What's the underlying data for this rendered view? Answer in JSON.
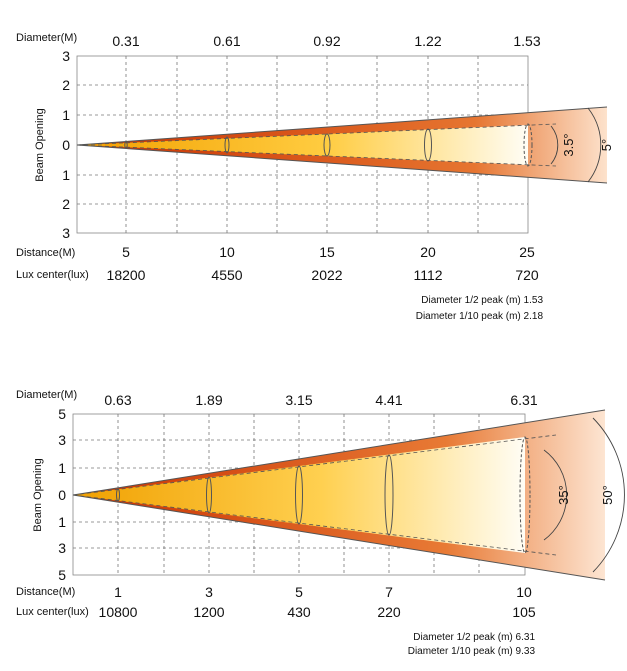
{
  "diagrams": [
    {
      "diameter_label": "Diameter(M)",
      "diameters": [
        "0.31",
        "0.61",
        "0.92",
        "1.22",
        "1.53"
      ],
      "y_axis_label": "Beam Opening",
      "y_ticks": [
        "3",
        "2",
        "1",
        "0",
        "1",
        "2",
        "3"
      ],
      "distance_label": "Distance(M)",
      "distances": [
        "5",
        "10",
        "15",
        "20",
        "25"
      ],
      "lux_label": "Lux center(lux)",
      "lux_values": [
        "18200",
        "4550",
        "2022",
        "1112",
        "720"
      ],
      "half_angle_label": "3.5°",
      "tenth_angle_label": "5°",
      "note_half_peak": "Diameter 1/2 peak (m) 1.53",
      "note_tenth_peak": "Diameter 1/10 peak (m) 2.18",
      "chart_data": {
        "type": "beam-diagram",
        "x": [
          5,
          10,
          15,
          20,
          25
        ],
        "diameter_m": [
          0.31,
          0.61,
          0.92,
          1.22,
          1.53
        ],
        "lux_center": [
          18200,
          4550,
          2022,
          1112,
          720
        ],
        "beam_angle_deg": 3.5,
        "field_angle_deg": 5,
        "y_range": [
          -3,
          3
        ],
        "x_range": [
          0,
          25
        ]
      }
    },
    {
      "diameter_label": "Diameter(M)",
      "diameters": [
        "0.63",
        "1.89",
        "3.15",
        "4.41",
        "6.31"
      ],
      "y_axis_label": "Beam Opening",
      "y_ticks": [
        "5",
        "3",
        "1",
        "0",
        "1",
        "3",
        "5"
      ],
      "distance_label": "Distance(M)",
      "distances": [
        "1",
        "3",
        "5",
        "7",
        "10"
      ],
      "lux_label": "Lux center(lux)",
      "lux_values": [
        "10800",
        "1200",
        "430",
        "220",
        "105"
      ],
      "half_angle_label": "35°",
      "tenth_angle_label": "50°",
      "note_half_peak": "Diameter 1/2 peak (m) 6.31",
      "note_tenth_peak": "Diameter 1/10 peak (m) 9.33",
      "chart_data": {
        "type": "beam-diagram",
        "x": [
          1,
          3,
          5,
          7,
          10
        ],
        "diameter_m": [
          0.63,
          1.89,
          3.15,
          4.41,
          6.31
        ],
        "lux_center": [
          10800,
          1200,
          430,
          220,
          105
        ],
        "beam_angle_deg": 35,
        "field_angle_deg": 50,
        "y_range": [
          -5,
          5
        ],
        "x_range": [
          0,
          10
        ]
      }
    }
  ]
}
